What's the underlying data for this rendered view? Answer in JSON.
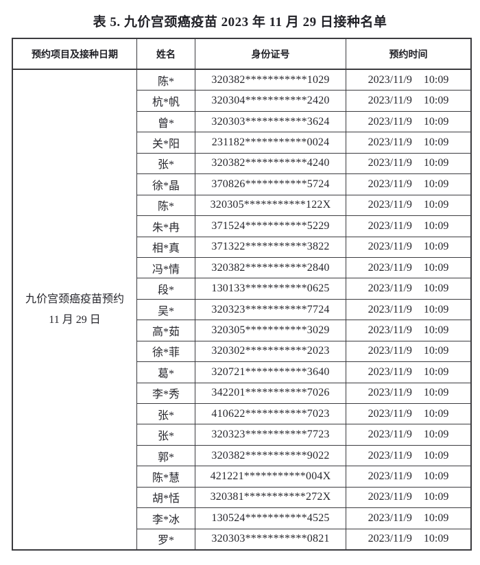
{
  "page": {
    "title": "表 5. 九价宫颈癌疫苗 2023 年 11 月 29 日接种名单"
  },
  "colors": {
    "background": "#ffffff",
    "text": "#26262c",
    "border": "#3a3a3e"
  },
  "table": {
    "headers": {
      "project": "预约项目及接种日期",
      "name": "姓名",
      "id_number": "身份证号",
      "time": "预约时间"
    },
    "merged_cell": {
      "line1": "九价宫颈癌疫苗预约",
      "line2": "11 月 29 日"
    },
    "rows": [
      {
        "name": "陈*",
        "id": "320382***********1029",
        "time": "2023/11/9 10:09"
      },
      {
        "name": "杭*帆",
        "id": "320304***********2420",
        "time": "2023/11/9 10:09"
      },
      {
        "name": "曾*",
        "id": "320303***********3624",
        "time": "2023/11/9 10:09"
      },
      {
        "name": "关*阳",
        "id": "231182***********0024",
        "time": "2023/11/9 10:09"
      },
      {
        "name": "张*",
        "id": "320382***********4240",
        "time": "2023/11/9 10:09"
      },
      {
        "name": "徐*晶",
        "id": "370826***********5724",
        "time": "2023/11/9 10:09"
      },
      {
        "name": "陈*",
        "id": "320305***********122X",
        "time": "2023/11/9 10:09"
      },
      {
        "name": "朱*冉",
        "id": "371524***********5229",
        "time": "2023/11/9 10:09"
      },
      {
        "name": "相*真",
        "id": "371322***********3822",
        "time": "2023/11/9 10:09"
      },
      {
        "name": "冯*情",
        "id": "320382***********2840",
        "time": "2023/11/9 10:09"
      },
      {
        "name": "段*",
        "id": "130133***********0625",
        "time": "2023/11/9 10:09"
      },
      {
        "name": "吴*",
        "id": "320323***********7724",
        "time": "2023/11/9 10:09"
      },
      {
        "name": "高*茹",
        "id": "320305***********3029",
        "time": "2023/11/9 10:09"
      },
      {
        "name": "徐*菲",
        "id": "320302***********2023",
        "time": "2023/11/9 10:09"
      },
      {
        "name": "葛*",
        "id": "320721***********3640",
        "time": "2023/11/9 10:09"
      },
      {
        "name": "李*秀",
        "id": "342201***********7026",
        "time": "2023/11/9 10:09"
      },
      {
        "name": "张*",
        "id": "410622***********7023",
        "time": "2023/11/9 10:09"
      },
      {
        "name": "张*",
        "id": "320323***********7723",
        "time": "2023/11/9 10:09"
      },
      {
        "name": "郭*",
        "id": "320382***********9022",
        "time": "2023/11/9 10:09"
      },
      {
        "name": "陈*慧",
        "id": "421221***********004X",
        "time": "2023/11/9 10:09"
      },
      {
        "name": "胡*恬",
        "id": "320381***********272X",
        "time": "2023/11/9 10:09"
      },
      {
        "name": "李*冰",
        "id": "130524***********4525",
        "time": "2023/11/9 10:09"
      },
      {
        "name": "罗*",
        "id": "320303***********0821",
        "time": "2023/11/9 10:09"
      }
    ]
  }
}
